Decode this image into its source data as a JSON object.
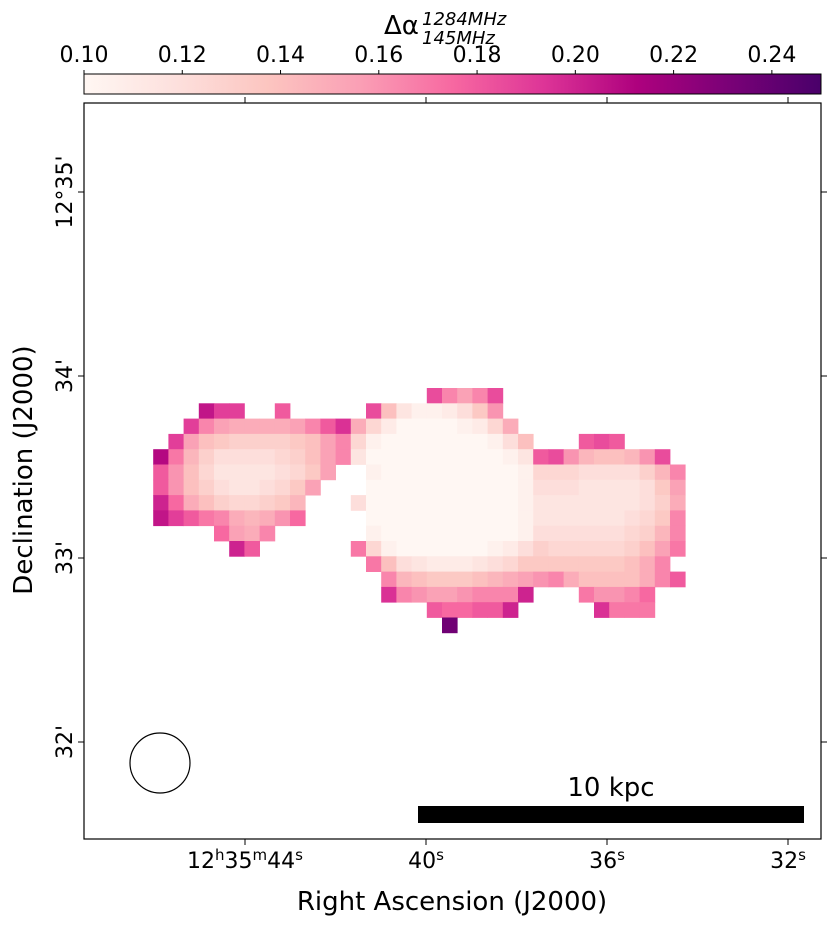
{
  "chart_data": {
    "type": "heatmap",
    "colorbar": {
      "label_main": "Δα",
      "label_sup": "1284MHz",
      "label_sub": "145MHz",
      "ticks": [
        "0.10",
        "0.12",
        "0.14",
        "0.16",
        "0.18",
        "0.20",
        "0.22",
        "0.24"
      ],
      "range": [
        0.1,
        0.25
      ],
      "colormap": [
        "#fff7f3",
        "#fde0dd",
        "#fcc5c0",
        "#fa9fb5",
        "#f768a1",
        "#dd3497",
        "#ae017e",
        "#7a0177",
        "#49006a"
      ]
    },
    "x_axis": {
      "title": "Right Ascension (J2000)",
      "ticks": [
        {
          "h": "12",
          "m": "35",
          "s": "44",
          "sup_h": "h",
          "sup_m": "m",
          "sup_s": "s",
          "full": true
        },
        {
          "s": "40",
          "sup_s": "s",
          "full": false
        },
        {
          "s": "36",
          "sup_s": "s",
          "full": false
        },
        {
          "s": "32",
          "sup_s": "s",
          "full": false
        }
      ]
    },
    "y_axis": {
      "title": "Declination (J2000)",
      "ticks": [
        "12°35'",
        "34'",
        "33'",
        "32'"
      ]
    },
    "scalebar": {
      "label": "10 kpc"
    },
    "beam": "circle",
    "grid": false,
    "pixel_grid": {
      "cols": 36,
      "rows": 16,
      "values": [
        [
          null,
          null,
          null,
          null,
          null,
          null,
          null,
          null,
          null,
          null,
          null,
          null,
          null,
          null,
          null,
          null,
          null,
          null,
          null,
          0.185,
          0.165,
          0.155,
          0.165,
          0.185,
          null,
          null,
          null,
          null,
          null,
          null,
          null,
          null,
          null,
          null,
          null,
          null
        ],
        [
          null,
          null,
          null,
          null,
          0.205,
          0.19,
          0.19,
          null,
          null,
          0.18,
          null,
          null,
          null,
          null,
          null,
          0.185,
          0.14,
          0.115,
          0.105,
          0.105,
          0.11,
          0.12,
          0.135,
          0.16,
          null,
          null,
          null,
          null,
          null,
          null,
          null,
          null,
          null,
          null,
          null,
          null
        ],
        [
          null,
          null,
          null,
          0.19,
          0.165,
          0.155,
          0.15,
          0.15,
          0.15,
          0.15,
          0.155,
          0.165,
          0.18,
          0.195,
          0.15,
          0.125,
          0.11,
          0.1,
          0.1,
          0.1,
          0.1,
          0.105,
          0.11,
          0.125,
          0.15,
          null,
          null,
          null,
          null,
          null,
          null,
          null,
          null,
          null,
          null,
          null
        ],
        [
          null,
          null,
          0.19,
          0.155,
          0.14,
          0.135,
          0.13,
          0.13,
          0.13,
          0.13,
          0.135,
          0.14,
          0.155,
          0.165,
          0.125,
          0.105,
          0.1,
          0.1,
          0.1,
          0.1,
          0.1,
          0.1,
          0.1,
          0.105,
          0.12,
          0.14,
          null,
          null,
          null,
          0.18,
          0.185,
          0.18,
          null,
          null,
          null,
          null
        ],
        [
          null,
          0.21,
          0.17,
          0.145,
          0.13,
          0.12,
          0.12,
          0.12,
          0.12,
          0.125,
          0.13,
          0.14,
          0.155,
          0.165,
          0.115,
          0.1,
          0.1,
          0.1,
          0.1,
          0.1,
          0.1,
          0.1,
          0.1,
          0.1,
          0.105,
          0.115,
          0.18,
          0.185,
          0.16,
          0.145,
          0.14,
          0.14,
          0.145,
          0.16,
          0.185,
          null
        ],
        [
          null,
          0.18,
          0.16,
          0.14,
          0.125,
          0.115,
          0.115,
          0.115,
          0.115,
          0.12,
          0.125,
          0.135,
          0.155,
          null,
          null,
          0.105,
          0.1,
          0.1,
          0.1,
          0.1,
          0.1,
          0.1,
          0.1,
          0.1,
          0.1,
          0.105,
          0.125,
          0.125,
          0.125,
          0.12,
          0.12,
          0.12,
          0.12,
          0.13,
          0.145,
          0.165
        ],
        [
          null,
          0.18,
          0.16,
          0.14,
          0.13,
          0.12,
          0.115,
          0.115,
          0.12,
          0.125,
          0.135,
          0.155,
          null,
          null,
          null,
          0.1,
          0.1,
          0.1,
          0.1,
          0.1,
          0.1,
          0.1,
          0.1,
          0.1,
          0.1,
          0.105,
          0.12,
          0.12,
          0.12,
          0.115,
          0.115,
          0.115,
          0.115,
          0.12,
          0.135,
          0.155
        ],
        [
          null,
          0.2,
          0.175,
          0.15,
          0.14,
          0.13,
          0.125,
          0.125,
          0.13,
          0.135,
          0.145,
          null,
          null,
          null,
          0.12,
          0.1,
          0.1,
          0.1,
          0.1,
          0.1,
          0.1,
          0.1,
          0.1,
          0.1,
          0.1,
          0.105,
          0.115,
          0.115,
          0.115,
          0.115,
          0.115,
          0.115,
          0.115,
          0.12,
          0.13,
          0.15
        ],
        [
          null,
          0.205,
          0.19,
          0.18,
          0.17,
          0.165,
          0.15,
          0.145,
          0.15,
          0.16,
          0.175,
          null,
          null,
          null,
          null,
          0.1,
          0.1,
          0.1,
          0.1,
          0.1,
          0.1,
          0.1,
          0.1,
          0.1,
          0.1,
          0.105,
          0.115,
          0.115,
          0.115,
          0.115,
          0.115,
          0.115,
          0.12,
          0.125,
          0.135,
          0.165
        ],
        [
          null,
          null,
          null,
          null,
          null,
          0.175,
          0.155,
          0.15,
          0.165,
          null,
          null,
          null,
          null,
          null,
          null,
          0.105,
          0.1,
          0.1,
          0.1,
          0.1,
          0.1,
          0.1,
          0.1,
          0.1,
          0.1,
          0.105,
          0.12,
          0.12,
          0.12,
          0.12,
          0.12,
          0.12,
          0.125,
          0.13,
          0.145,
          0.165
        ],
        [
          null,
          null,
          null,
          null,
          null,
          null,
          0.2,
          0.18,
          null,
          null,
          null,
          null,
          null,
          null,
          0.17,
          0.125,
          0.105,
          0.1,
          0.1,
          0.1,
          0.1,
          0.1,
          0.1,
          0.105,
          0.11,
          0.12,
          0.13,
          0.125,
          0.125,
          0.125,
          0.125,
          0.125,
          0.13,
          0.14,
          0.155,
          0.17
        ],
        [
          null,
          null,
          null,
          null,
          null,
          null,
          null,
          null,
          null,
          null,
          null,
          null,
          null,
          null,
          null,
          0.17,
          0.14,
          0.12,
          0.115,
          0.11,
          0.11,
          0.11,
          0.115,
          0.12,
          0.125,
          0.135,
          0.135,
          0.135,
          0.135,
          0.135,
          0.135,
          0.135,
          0.14,
          0.15,
          0.165,
          null
        ],
        [
          null,
          null,
          null,
          null,
          null,
          null,
          null,
          null,
          null,
          null,
          null,
          null,
          null,
          null,
          null,
          null,
          0.165,
          0.145,
          0.14,
          0.135,
          0.135,
          0.135,
          0.14,
          0.145,
          0.15,
          0.155,
          0.16,
          0.165,
          0.15,
          0.14,
          0.14,
          0.14,
          0.14,
          0.15,
          0.165,
          0.18
        ],
        [
          null,
          null,
          null,
          null,
          null,
          null,
          null,
          null,
          null,
          null,
          null,
          null,
          null,
          null,
          null,
          null,
          0.195,
          0.165,
          0.16,
          0.155,
          0.155,
          0.16,
          0.165,
          0.165,
          0.165,
          0.2,
          null,
          null,
          null,
          0.17,
          0.16,
          0.16,
          0.165,
          0.175,
          null,
          null
        ],
        [
          null,
          null,
          null,
          null,
          null,
          null,
          null,
          null,
          null,
          null,
          null,
          null,
          null,
          null,
          null,
          null,
          null,
          null,
          null,
          0.18,
          0.175,
          0.175,
          0.18,
          0.18,
          0.2,
          null,
          null,
          null,
          null,
          null,
          0.195,
          0.17,
          0.17,
          0.17,
          null,
          null
        ],
        [
          null,
          null,
          null,
          null,
          null,
          null,
          null,
          null,
          null,
          null,
          null,
          null,
          null,
          null,
          null,
          null,
          null,
          null,
          null,
          null,
          0.235,
          null,
          null,
          null,
          null,
          null,
          null,
          null,
          null,
          null,
          null,
          null,
          null,
          null,
          null,
          null
        ]
      ]
    }
  }
}
